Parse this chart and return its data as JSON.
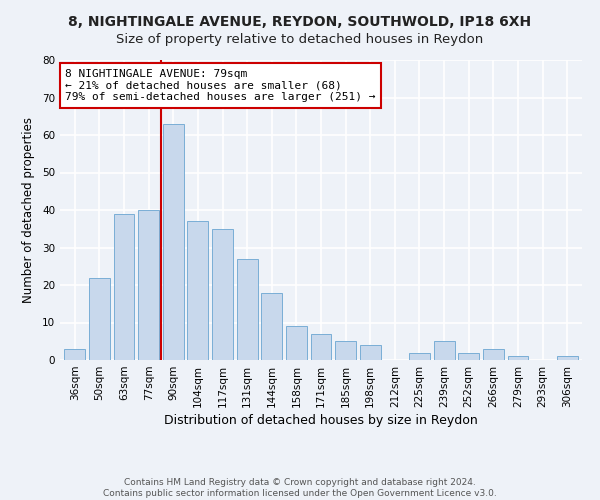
{
  "title_line1": "8, NIGHTINGALE AVENUE, REYDON, SOUTHWOLD, IP18 6XH",
  "title_line2": "Size of property relative to detached houses in Reydon",
  "xlabel": "Distribution of detached houses by size in Reydon",
  "ylabel": "Number of detached properties",
  "bar_labels": [
    "36sqm",
    "50sqm",
    "63sqm",
    "77sqm",
    "90sqm",
    "104sqm",
    "117sqm",
    "131sqm",
    "144sqm",
    "158sqm",
    "171sqm",
    "185sqm",
    "198sqm",
    "212sqm",
    "225sqm",
    "239sqm",
    "252sqm",
    "266sqm",
    "279sqm",
    "293sqm",
    "306sqm"
  ],
  "bar_values": [
    3,
    22,
    39,
    40,
    63,
    37,
    35,
    27,
    18,
    9,
    7,
    5,
    4,
    0,
    2,
    5,
    2,
    3,
    1,
    0,
    1
  ],
  "bar_color": "#c8d8ec",
  "bar_edge_color": "#7aaed6",
  "vline_x": 3.5,
  "vline_color": "#cc0000",
  "annotation_line1": "8 NIGHTINGALE AVENUE: 79sqm",
  "annotation_line2": "← 21% of detached houses are smaller (68)",
  "annotation_line3": "79% of semi-detached houses are larger (251) →",
  "annotation_box_edge_color": "#cc0000",
  "annotation_box_face_color": "#ffffff",
  "ylim": [
    0,
    80
  ],
  "yticks": [
    0,
    10,
    20,
    30,
    40,
    50,
    60,
    70,
    80
  ],
  "footer_line1": "Contains HM Land Registry data © Crown copyright and database right 2024.",
  "footer_line2": "Contains public sector information licensed under the Open Government Licence v3.0.",
  "bg_color": "#eef2f8",
  "plot_bg_color": "#eef2f8",
  "grid_color": "#ffffff",
  "title1_fontsize": 10,
  "title2_fontsize": 9.5,
  "xlabel_fontsize": 9,
  "ylabel_fontsize": 8.5,
  "tick_fontsize": 7.5,
  "annot_fontsize": 8,
  "footer_fontsize": 6.5
}
